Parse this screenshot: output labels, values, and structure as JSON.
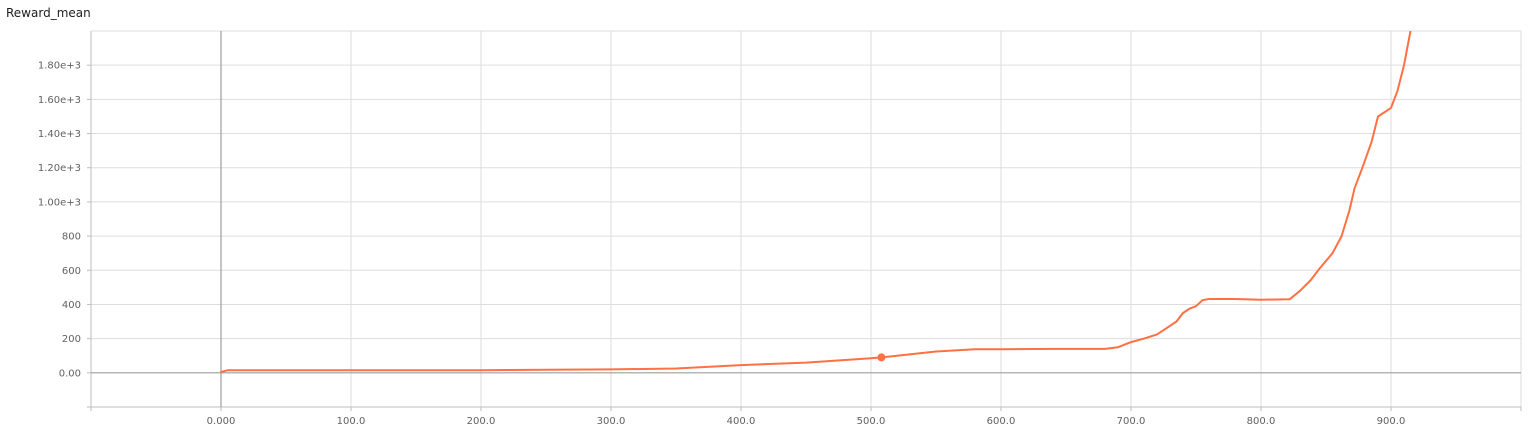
{
  "chart_data": {
    "type": "line",
    "title": "Reward_mean",
    "xlabel": "",
    "ylabel": "",
    "xlim": [
      -100,
      1000
    ],
    "ylim": [
      -200,
      2000
    ],
    "grid": true,
    "x_ticks": [
      0,
      100,
      200,
      300,
      400,
      500,
      600,
      700,
      800,
      900
    ],
    "x_tick_labels": [
      "0.000",
      "100.0",
      "200.0",
      "300.0",
      "400.0",
      "500.0",
      "600.0",
      "700.0",
      "800.0",
      "900.0"
    ],
    "y_ticks": [
      0,
      200,
      400,
      600,
      800,
      1000,
      1200,
      1400,
      1600,
      1800
    ],
    "y_tick_labels": [
      "0.00",
      "200",
      "400",
      "600",
      "800",
      "1.00e+3",
      "1.20e+3",
      "1.40e+3",
      "1.60e+3",
      "1.80e+3"
    ],
    "colors": {
      "series": "#ff7043",
      "grid": "#dddddd",
      "zero_axis": "#9e9e9e"
    },
    "series": [
      {
        "x": [
          0,
          5,
          20,
          50,
          100,
          150,
          200,
          250,
          300,
          350,
          400,
          450,
          480,
          500,
          508,
          520,
          550,
          580,
          600,
          640,
          680,
          690,
          700,
          710,
          720,
          727,
          735,
          740,
          745,
          750,
          755,
          760,
          780,
          800,
          822,
          830,
          838,
          845,
          855,
          862,
          868,
          872,
          878,
          885,
          890,
          900,
          905,
          910,
          915
        ],
        "y": [
          5,
          15,
          15,
          15,
          15,
          15,
          15,
          18,
          20,
          25,
          45,
          60,
          75,
          85,
          90,
          100,
          125,
          138,
          138,
          140,
          140,
          150,
          180,
          200,
          225,
          260,
          300,
          350,
          375,
          390,
          425,
          432,
          432,
          428,
          430,
          480,
          540,
          610,
          700,
          800,
          950,
          1080,
          1200,
          1350,
          1500,
          1550,
          1650,
          1800,
          2000
        ]
      }
    ],
    "highlight_point": {
      "x": 508,
      "y": 90
    }
  }
}
